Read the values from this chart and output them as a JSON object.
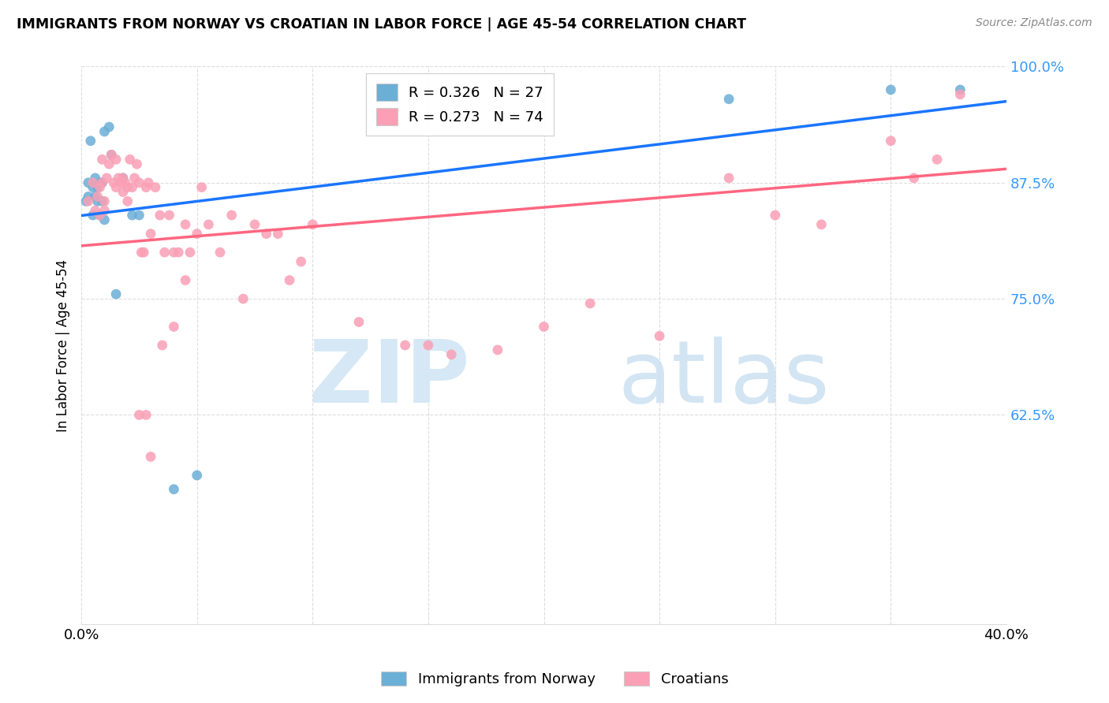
{
  "title": "IMMIGRANTS FROM NORWAY VS CROATIAN IN LABOR FORCE | AGE 45-54 CORRELATION CHART",
  "source": "Source: ZipAtlas.com",
  "ylabel": "In Labor Force | Age 45-54",
  "xmin": 0.0,
  "xmax": 0.4,
  "ymin": 0.4,
  "ymax": 1.0,
  "yticks": [
    0.625,
    0.75,
    0.875,
    1.0
  ],
  "ytick_labels": [
    "62.5%",
    "75.0%",
    "87.5%",
    "100.0%"
  ],
  "norway_R": 0.326,
  "norway_N": 27,
  "croatian_R": 0.273,
  "croatian_N": 74,
  "norway_color": "#6baed6",
  "croatian_color": "#fa9fb5",
  "norway_line_color": "#1a75ff",
  "croatian_line_color": "#ff6680",
  "norway_x": [
    0.002,
    0.003,
    0.003,
    0.004,
    0.005,
    0.005,
    0.006,
    0.006,
    0.007,
    0.007,
    0.008,
    0.008,
    0.009,
    0.009,
    0.01,
    0.01,
    0.012,
    0.013,
    0.015,
    0.018,
    0.022,
    0.025,
    0.04,
    0.05,
    0.28,
    0.35,
    0.38
  ],
  "norway_y": [
    0.855,
    0.875,
    0.86,
    0.92,
    0.87,
    0.84,
    0.86,
    0.88,
    0.855,
    0.87,
    0.84,
    0.875,
    0.855,
    0.875,
    0.93,
    0.835,
    0.935,
    0.905,
    0.755,
    0.88,
    0.84,
    0.84,
    0.545,
    0.56,
    0.965,
    0.975,
    0.975
  ],
  "croatian_x": [
    0.003,
    0.005,
    0.006,
    0.007,
    0.008,
    0.008,
    0.009,
    0.009,
    0.01,
    0.01,
    0.011,
    0.012,
    0.013,
    0.014,
    0.015,
    0.015,
    0.016,
    0.017,
    0.018,
    0.018,
    0.019,
    0.02,
    0.02,
    0.021,
    0.022,
    0.023,
    0.024,
    0.025,
    0.026,
    0.027,
    0.028,
    0.029,
    0.03,
    0.032,
    0.034,
    0.036,
    0.038,
    0.04,
    0.042,
    0.045,
    0.047,
    0.05,
    0.052,
    0.055,
    0.06,
    0.065,
    0.07,
    0.075,
    0.08,
    0.085,
    0.09,
    0.095,
    0.1,
    0.12,
    0.14,
    0.15,
    0.16,
    0.18,
    0.2,
    0.22,
    0.25,
    0.28,
    0.3,
    0.32,
    0.35,
    0.36,
    0.37,
    0.38,
    0.025,
    0.028,
    0.03,
    0.035,
    0.04,
    0.045
  ],
  "croatian_y": [
    0.855,
    0.875,
    0.845,
    0.86,
    0.87,
    0.84,
    0.875,
    0.9,
    0.855,
    0.845,
    0.88,
    0.895,
    0.905,
    0.875,
    0.87,
    0.9,
    0.88,
    0.875,
    0.88,
    0.865,
    0.875,
    0.87,
    0.855,
    0.9,
    0.87,
    0.88,
    0.895,
    0.875,
    0.8,
    0.8,
    0.87,
    0.875,
    0.82,
    0.87,
    0.84,
    0.8,
    0.84,
    0.8,
    0.8,
    0.83,
    0.8,
    0.82,
    0.87,
    0.83,
    0.8,
    0.84,
    0.75,
    0.83,
    0.82,
    0.82,
    0.77,
    0.79,
    0.83,
    0.725,
    0.7,
    0.7,
    0.69,
    0.695,
    0.72,
    0.745,
    0.71,
    0.88,
    0.84,
    0.83,
    0.92,
    0.88,
    0.9,
    0.97,
    0.625,
    0.625,
    0.58,
    0.7,
    0.72,
    0.77
  ]
}
